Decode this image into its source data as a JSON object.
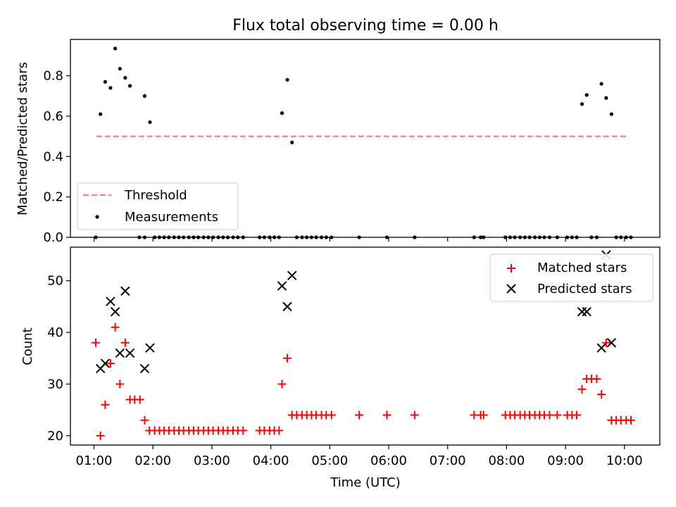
{
  "figure": {
    "title": "Flux total observing time = 0.00 h"
  },
  "chart_data": [
    {
      "type": "scatter",
      "title": "Flux total observing time = 0.00 h",
      "xlabel": "",
      "ylabel": "Matched/Predicted stars",
      "xlim": [
        0.6,
        10.6
      ],
      "ylim": [
        0.0,
        0.98
      ],
      "x_ticks": [
        1,
        2,
        3,
        4,
        5,
        6,
        7,
        8,
        9,
        10
      ],
      "x_tick_labels": [
        "",
        "",
        "",
        "",
        "",
        "",
        "",
        "",
        "",
        ""
      ],
      "y_ticks": [
        0.0,
        0.2,
        0.4,
        0.6,
        0.8
      ],
      "y_tick_labels": [
        "0.0",
        "0.2",
        "0.4",
        "0.6",
        "0.8"
      ],
      "legend": {
        "placement": "lower-left"
      },
      "threshold": {
        "name": "Threshold",
        "value": 0.5,
        "x": [
          1.04,
          10.06
        ],
        "color": "#ff7b7b"
      },
      "series": [
        {
          "name": "Measurements",
          "color": "#000000",
          "marker": "dot",
          "points": [
            [
              1.03,
              0.0
            ],
            [
              1.11,
              0.61
            ],
            [
              1.19,
              0.77
            ],
            [
              1.28,
              0.74
            ],
            [
              1.36,
              0.935
            ],
            [
              1.44,
              0.835
            ],
            [
              1.53,
              0.79
            ],
            [
              1.61,
              0.75
            ],
            [
              1.77,
              0.0
            ],
            [
              1.86,
              0.0
            ],
            [
              1.86,
              0.7
            ],
            [
              1.95,
              0.57
            ],
            [
              2.03,
              0.0
            ],
            [
              2.11,
              0.0
            ],
            [
              2.19,
              0.0
            ],
            [
              2.27,
              0.0
            ],
            [
              2.36,
              0.0
            ],
            [
              2.44,
              0.0
            ],
            [
              2.52,
              0.0
            ],
            [
              2.61,
              0.0
            ],
            [
              2.69,
              0.0
            ],
            [
              2.77,
              0.0
            ],
            [
              2.86,
              0.0
            ],
            [
              2.94,
              0.0
            ],
            [
              3.02,
              0.0
            ],
            [
              3.11,
              0.0
            ],
            [
              3.19,
              0.0
            ],
            [
              3.27,
              0.0
            ],
            [
              3.36,
              0.0
            ],
            [
              3.44,
              0.0
            ],
            [
              3.53,
              0.0
            ],
            [
              3.81,
              0.0
            ],
            [
              3.89,
              0.0
            ],
            [
              3.98,
              0.0
            ],
            [
              4.06,
              0.0
            ],
            [
              4.14,
              0.0
            ],
            [
              4.19,
              0.615
            ],
            [
              4.28,
              0.78
            ],
            [
              4.36,
              0.47
            ],
            [
              4.44,
              0.0
            ],
            [
              4.53,
              0.0
            ],
            [
              4.61,
              0.0
            ],
            [
              4.69,
              0.0
            ],
            [
              4.77,
              0.0
            ],
            [
              4.86,
              0.0
            ],
            [
              4.94,
              0.0
            ],
            [
              5.03,
              0.0
            ],
            [
              5.5,
              0.0
            ],
            [
              5.97,
              0.0
            ],
            [
              6.44,
              0.0
            ],
            [
              7.45,
              0.0
            ],
            [
              7.56,
              0.0
            ],
            [
              7.61,
              0.0
            ],
            [
              7.98,
              0.0
            ],
            [
              8.06,
              0.0
            ],
            [
              8.14,
              0.0
            ],
            [
              8.23,
              0.0
            ],
            [
              8.31,
              0.0
            ],
            [
              8.39,
              0.0
            ],
            [
              8.48,
              0.0
            ],
            [
              8.56,
              0.0
            ],
            [
              8.64,
              0.0
            ],
            [
              8.73,
              0.0
            ],
            [
              8.86,
              0.0
            ],
            [
              9.03,
              0.0
            ],
            [
              9.11,
              0.0
            ],
            [
              9.19,
              0.0
            ],
            [
              9.28,
              0.66
            ],
            [
              9.36,
              0.705
            ],
            [
              9.44,
              0.0
            ],
            [
              9.53,
              0.0
            ],
            [
              9.61,
              0.76
            ],
            [
              9.69,
              0.69
            ],
            [
              9.78,
              0.61
            ],
            [
              9.86,
              0.0
            ],
            [
              9.94,
              0.0
            ],
            [
              10.03,
              0.0
            ],
            [
              10.11,
              0.0
            ]
          ]
        }
      ]
    },
    {
      "type": "scatter",
      "title": "",
      "xlabel": "Time (UTC)",
      "ylabel": "Count",
      "xlim": [
        0.6,
        10.6
      ],
      "ylim": [
        18.2,
        56.5
      ],
      "x_ticks": [
        1,
        2,
        3,
        4,
        5,
        6,
        7,
        8,
        9,
        10
      ],
      "x_tick_labels": [
        "01:00",
        "02:00",
        "03:00",
        "04:00",
        "05:00",
        "06:00",
        "07:00",
        "08:00",
        "09:00",
        "10:00"
      ],
      "y_ticks": [
        20,
        30,
        40,
        50
      ],
      "y_tick_labels": [
        "20",
        "30",
        "40",
        "50"
      ],
      "legend": {
        "placement": "top-right"
      },
      "series": [
        {
          "name": "Matched stars",
          "color": "#ff0000",
          "marker": "plus",
          "points": [
            [
              1.03,
              38
            ],
            [
              1.11,
              20
            ],
            [
              1.19,
              26
            ],
            [
              1.28,
              34
            ],
            [
              1.36,
              41
            ],
            [
              1.44,
              30
            ],
            [
              1.53,
              38
            ],
            [
              1.61,
              27
            ],
            [
              1.69,
              27
            ],
            [
              1.78,
              27
            ],
            [
              1.86,
              23
            ],
            [
              1.94,
              21
            ],
            [
              2.03,
              21
            ],
            [
              2.11,
              21
            ],
            [
              2.19,
              21
            ],
            [
              2.27,
              21
            ],
            [
              2.36,
              21
            ],
            [
              2.44,
              21
            ],
            [
              2.52,
              21
            ],
            [
              2.61,
              21
            ],
            [
              2.69,
              21
            ],
            [
              2.77,
              21
            ],
            [
              2.86,
              21
            ],
            [
              2.94,
              21
            ],
            [
              3.02,
              21
            ],
            [
              3.11,
              21
            ],
            [
              3.19,
              21
            ],
            [
              3.27,
              21
            ],
            [
              3.36,
              21
            ],
            [
              3.44,
              21
            ],
            [
              3.53,
              21
            ],
            [
              3.81,
              21
            ],
            [
              3.89,
              21
            ],
            [
              3.98,
              21
            ],
            [
              4.06,
              21
            ],
            [
              4.14,
              21
            ],
            [
              4.19,
              30
            ],
            [
              4.28,
              35
            ],
            [
              4.36,
              24
            ],
            [
              4.44,
              24
            ],
            [
              4.53,
              24
            ],
            [
              4.61,
              24
            ],
            [
              4.69,
              24
            ],
            [
              4.77,
              24
            ],
            [
              4.86,
              24
            ],
            [
              4.94,
              24
            ],
            [
              5.03,
              24
            ],
            [
              5.5,
              24
            ],
            [
              5.97,
              24
            ],
            [
              6.44,
              24
            ],
            [
              7.45,
              24
            ],
            [
              7.56,
              24
            ],
            [
              7.61,
              24
            ],
            [
              7.98,
              24
            ],
            [
              8.06,
              24
            ],
            [
              8.14,
              24
            ],
            [
              8.23,
              24
            ],
            [
              8.31,
              24
            ],
            [
              8.39,
              24
            ],
            [
              8.48,
              24
            ],
            [
              8.56,
              24
            ],
            [
              8.64,
              24
            ],
            [
              8.73,
              24
            ],
            [
              8.86,
              24
            ],
            [
              9.03,
              24
            ],
            [
              9.11,
              24
            ],
            [
              9.19,
              24
            ],
            [
              9.28,
              29
            ],
            [
              9.36,
              31
            ],
            [
              9.44,
              31
            ],
            [
              9.53,
              31
            ],
            [
              9.61,
              28
            ],
            [
              9.69,
              38
            ],
            [
              9.78,
              23
            ],
            [
              9.86,
              23
            ],
            [
              9.94,
              23
            ],
            [
              10.03,
              23
            ],
            [
              10.11,
              23
            ]
          ]
        },
        {
          "name": "Predicted stars",
          "color": "#000000",
          "marker": "x",
          "points": [
            [
              1.11,
              33
            ],
            [
              1.19,
              34
            ],
            [
              1.28,
              46
            ],
            [
              1.36,
              44
            ],
            [
              1.44,
              36
            ],
            [
              1.53,
              48
            ],
            [
              1.61,
              36
            ],
            [
              1.86,
              33
            ],
            [
              1.95,
              37
            ],
            [
              4.19,
              49
            ],
            [
              4.28,
              45
            ],
            [
              4.36,
              51
            ],
            [
              9.28,
              44
            ],
            [
              9.36,
              44
            ],
            [
              9.61,
              37
            ],
            [
              9.69,
              55
            ],
            [
              9.78,
              38
            ]
          ]
        }
      ]
    }
  ]
}
